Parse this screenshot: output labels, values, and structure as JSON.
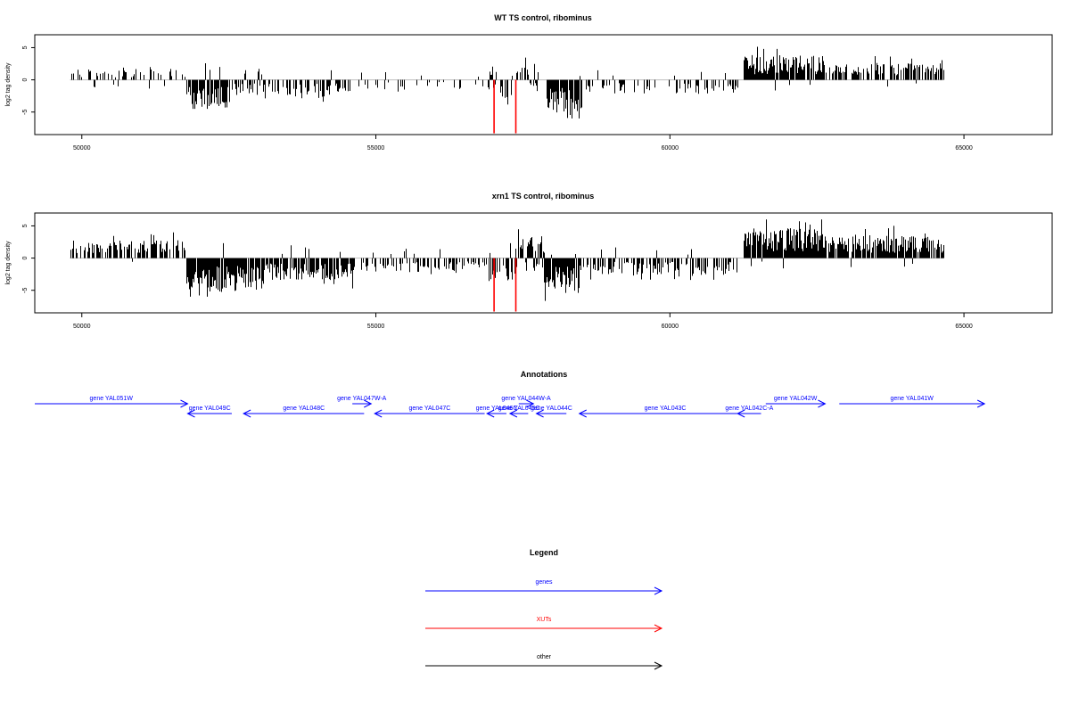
{
  "colors": {
    "genes": "#0000ff",
    "xuts": "#ff0000",
    "other": "#000000",
    "baseline": "#bebebe",
    "signal": "#000000"
  },
  "x_axis": {
    "ticks": [
      50000,
      55000,
      60000,
      65000
    ],
    "tick_labels": [
      "50000",
      "55000",
      "60000",
      "65000"
    ],
    "xlim": [
      49200,
      66500
    ]
  },
  "chart_data": [
    {
      "type": "bar",
      "title": "WT TS control, ribominus",
      "ylabel": "log2 tag density",
      "ylim": [
        -8.5,
        7
      ],
      "yticks": [
        -5,
        0,
        5
      ],
      "ytick_labels": [
        "-5",
        "0",
        "5"
      ],
      "baseline": 0,
      "baseline_range": [
        49800,
        64650
      ],
      "regions": [
        {
          "start": 49800,
          "end": 51750,
          "mean": 1.1,
          "max": 3.2,
          "density": 0.35,
          "noise": 0.08
        },
        {
          "start": 51780,
          "end": 52500,
          "mean": -2.9,
          "max": 4.5,
          "density": 0.9,
          "noise": 0.05
        },
        {
          "start": 52500,
          "end": 53600,
          "mean": -1.6,
          "max": 3.6,
          "density": 0.5,
          "noise": 0.1
        },
        {
          "start": 53600,
          "end": 54550,
          "mean": -1.6,
          "max": 3.4,
          "density": 0.65,
          "noise": 0.05
        },
        {
          "start": 54550,
          "end": 56900,
          "mean": -1.0,
          "max": 2.5,
          "density": 0.2,
          "noise": 0.05
        },
        {
          "start": 56900,
          "end": 57350,
          "mean": -2.0,
          "max": 4.0,
          "density": 0.6,
          "noise": 0.2
        },
        {
          "start": 57380,
          "end": 57750,
          "mean": 1.6,
          "max": 4.5,
          "density": 0.55,
          "noise": 0.3
        },
        {
          "start": 57900,
          "end": 58500,
          "mean": -3.3,
          "max": 6.0,
          "density": 0.95,
          "noise": 0.05
        },
        {
          "start": 58500,
          "end": 61200,
          "mean": -1.4,
          "max": 3.4,
          "density": 0.3,
          "noise": 0.1
        },
        {
          "start": 61250,
          "end": 62650,
          "mean": 2.4,
          "max": 5.2,
          "density": 0.95,
          "noise": 0.02
        },
        {
          "start": 62700,
          "end": 64650,
          "mean": 1.7,
          "max": 4.7,
          "density": 0.65,
          "noise": 0.03
        }
      ],
      "highlights": [
        {
          "x": 57010,
          "y": -8.3
        },
        {
          "x": 57380,
          "y": -8.3
        }
      ]
    },
    {
      "type": "bar",
      "title": "xrn1 TS control, ribominus",
      "ylabel": "log2 tag density",
      "ylim": [
        -8.5,
        7
      ],
      "yticks": [
        -5,
        0,
        5
      ],
      "ytick_labels": [
        "-5",
        "0",
        "5"
      ],
      "baseline": 0,
      "baseline_range": [
        49800,
        64650
      ],
      "regions": [
        {
          "start": 49800,
          "end": 51750,
          "mean": 1.8,
          "max": 4.3,
          "density": 0.55,
          "noise": 0.05
        },
        {
          "start": 51780,
          "end": 53100,
          "mean": -3.4,
          "max": 6.0,
          "density": 0.95,
          "noise": 0.03
        },
        {
          "start": 53100,
          "end": 54600,
          "mean": -2.2,
          "max": 4.8,
          "density": 0.85,
          "noise": 0.06
        },
        {
          "start": 54600,
          "end": 56900,
          "mean": -1.4,
          "max": 3.2,
          "density": 0.45,
          "noise": 0.1
        },
        {
          "start": 56900,
          "end": 57380,
          "mean": -2.3,
          "max": 4.6,
          "density": 0.7,
          "noise": 0.25
        },
        {
          "start": 57400,
          "end": 57850,
          "mean": 2.3,
          "max": 6.2,
          "density": 0.8,
          "noise": 0.25
        },
        {
          "start": 57850,
          "end": 58450,
          "mean": -3.6,
          "max": 7.5,
          "density": 0.97,
          "noise": 0.02
        },
        {
          "start": 58450,
          "end": 61200,
          "mean": -1.7,
          "max": 4.0,
          "density": 0.55,
          "noise": 0.06
        },
        {
          "start": 61250,
          "end": 62650,
          "mean": 3.0,
          "max": 6.0,
          "density": 0.98,
          "noise": 0.02
        },
        {
          "start": 62700,
          "end": 64650,
          "mean": 2.2,
          "max": 6.2,
          "density": 0.85,
          "noise": 0.02
        }
      ],
      "highlights": [
        {
          "x": 57010,
          "y": -8.3
        },
        {
          "x": 57380,
          "y": -8.3
        }
      ]
    }
  ],
  "annotations": {
    "title": "Annotations",
    "genes": [
      {
        "label": "gene YAL051W",
        "start": 49200,
        "end": 51800,
        "strand": "+",
        "row": 0
      },
      {
        "label": "gene YAL049C",
        "start": 51800,
        "end": 52550,
        "strand": "-",
        "row": 1
      },
      {
        "label": "gene YAL048C",
        "start": 52750,
        "end": 54800,
        "strand": "-",
        "row": 1
      },
      {
        "label": "gene YAL047W-A",
        "start": 54600,
        "end": 54920,
        "strand": "+",
        "row": 0
      },
      {
        "label": "gene YAL047C",
        "start": 54980,
        "end": 56850,
        "strand": "-",
        "row": 1
      },
      {
        "label": "gene YAL046C",
        "start": 56890,
        "end": 57220,
        "strand": "-",
        "row": 1
      },
      {
        "label": "gene YAL044W-A",
        "start": 57430,
        "end": 57680,
        "strand": "+",
        "row": 0
      },
      {
        "label": "gene YAL045C",
        "start": 57280,
        "end": 57590,
        "strand": "-",
        "row": 1
      },
      {
        "label": "gene YAL044C",
        "start": 57730,
        "end": 58240,
        "strand": "-",
        "row": 1
      },
      {
        "label": "gene YAL043C",
        "start": 58460,
        "end": 61380,
        "strand": "-",
        "row": 1
      },
      {
        "label": "gene YAL042C-A",
        "start": 61150,
        "end": 61550,
        "strand": "-",
        "row": 1
      },
      {
        "label": "gene YAL042W",
        "start": 61630,
        "end": 62640,
        "strand": "+",
        "row": 0
      },
      {
        "label": "gene YAL041W",
        "start": 62880,
        "end": 65350,
        "strand": "+",
        "row": 0
      }
    ]
  },
  "legend": {
    "title": "Legend",
    "items": [
      {
        "label": "genes",
        "color": "#0000ff"
      },
      {
        "label": "XUTs",
        "color": "#ff0000"
      },
      {
        "label": "other",
        "color": "#000000"
      }
    ]
  }
}
